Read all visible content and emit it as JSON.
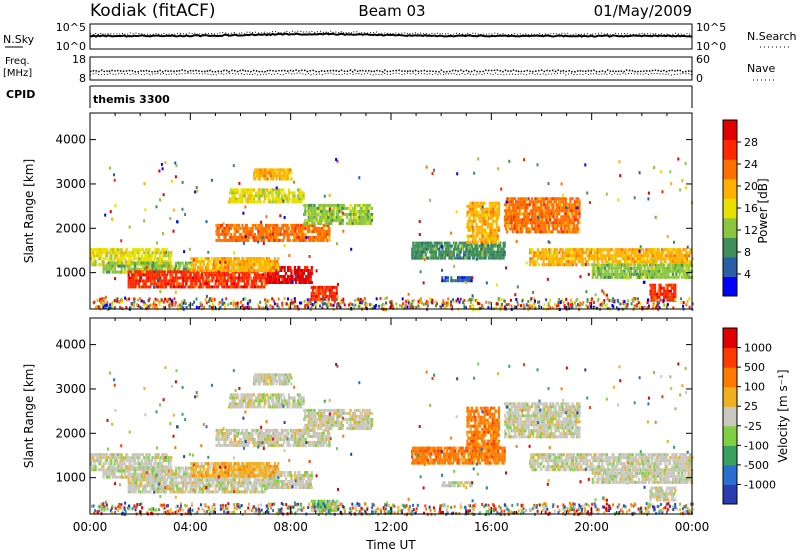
{
  "header": {
    "station": "Kodiak (fitACF)",
    "beam": "Beam 03",
    "date": "01/May/2009"
  },
  "noise_panel": {
    "left_label": "N.Sky",
    "left_ticks": [
      "10^5",
      "10^0"
    ],
    "right_ticks": [
      "10^5",
      "10^0"
    ],
    "right_label": "N.Search"
  },
  "freq_panel": {
    "left_label_1": "Freq.",
    "left_label_2": "[MHz]",
    "left_ticks": [
      "18",
      "8"
    ],
    "right_ticks": [
      "60",
      "0"
    ],
    "right_label": "Nave"
  },
  "cpid": {
    "label": "CPID",
    "value": "themis 3300"
  },
  "colors": {
    "power": [
      "#0000ff",
      "#2a5fa8",
      "#3f8f5a",
      "#8cc63f",
      "#e8e000",
      "#ffb000",
      "#ff7000",
      "#ff2800",
      "#e00000"
    ],
    "velocity": [
      "#2a3db0",
      "#2a6fd0",
      "#3aa060",
      "#7fd040",
      "#c8c8c0",
      "#f0b020",
      "#ff7a00",
      "#ff3a00",
      "#e00000"
    ],
    "ground_scatter": "#c8c8c0"
  },
  "chart_data": [
    {
      "type": "heatmap",
      "title": "",
      "xlabel": "",
      "ylabel": "Slant Range [km]",
      "colorbar_label": "Power [dB]",
      "colorbar_ticks": [
        "28",
        "24",
        "20",
        "16",
        "12",
        "8",
        "4"
      ],
      "xlim": [
        0,
        24
      ],
      "ylim": [
        180,
        4600
      ],
      "yticks": [
        "1000",
        "2000",
        "3000",
        "4000"
      ],
      "x_tick_labels": [
        "00:00",
        "04:00",
        "08:00",
        "12:00",
        "16:00",
        "20:00",
        "00:00"
      ],
      "bands": [
        {
          "t": [
            0.0,
            3.2
          ],
          "r0": 1200,
          "r1": 1550,
          "level": 4
        },
        {
          "t": [
            0.5,
            4.0
          ],
          "r0": 1000,
          "r1": 1250,
          "level": 3
        },
        {
          "t": [
            1.5,
            7.0
          ],
          "r0": 700,
          "r1": 1050,
          "level": 7
        },
        {
          "t": [
            7.0,
            8.8
          ],
          "r0": 800,
          "r1": 1150,
          "level": 8
        },
        {
          "t": [
            4.0,
            7.5
          ],
          "r0": 1050,
          "r1": 1350,
          "level": 5
        },
        {
          "t": [
            5.0,
            9.5
          ],
          "r0": 1750,
          "r1": 2100,
          "level": 6
        },
        {
          "t": [
            8.5,
            11.2
          ],
          "r0": 2100,
          "r1": 2550,
          "level": 3
        },
        {
          "t": [
            5.5,
            8.5
          ],
          "r0": 2600,
          "r1": 2900,
          "level": 4
        },
        {
          "t": [
            6.5,
            8.0
          ],
          "r0": 3100,
          "r1": 3350,
          "level": 5
        },
        {
          "t": [
            8.8,
            9.8
          ],
          "r0": 400,
          "r1": 700,
          "level": 7
        },
        {
          "t": [
            12.8,
            16.5
          ],
          "r0": 1350,
          "r1": 1700,
          "level": 2
        },
        {
          "t": [
            14.0,
            15.2
          ],
          "r0": 820,
          "r1": 920,
          "level": 1
        },
        {
          "t": [
            15.0,
            16.3
          ],
          "r0": 1700,
          "r1": 2600,
          "level": 5
        },
        {
          "t": [
            16.5,
            19.5
          ],
          "r0": 1900,
          "r1": 2700,
          "level": 6
        },
        {
          "t": [
            17.5,
            24.0
          ],
          "r0": 1200,
          "r1": 1550,
          "level": 5
        },
        {
          "t": [
            20.0,
            24.0
          ],
          "r0": 900,
          "r1": 1200,
          "level": 3
        },
        {
          "t": [
            22.3,
            23.3
          ],
          "r0": 400,
          "r1": 750,
          "level": 7
        }
      ]
    },
    {
      "type": "heatmap",
      "title": "",
      "xlabel": "Time UT",
      "ylabel": "Slant Range [km]",
      "colorbar_label": "Velocity [m s⁻¹]",
      "colorbar_ticks": [
        "1000",
        "500",
        "100",
        "25",
        "-25",
        "-100",
        "-500",
        "-1000"
      ],
      "xlim": [
        0,
        24
      ],
      "ylim": [
        180,
        4600
      ],
      "yticks": [
        "1000",
        "2000",
        "3000",
        "4000"
      ],
      "x_tick_labels": [
        "00:00",
        "04:00",
        "08:00",
        "12:00",
        "16:00",
        "20:00",
        "00:00"
      ],
      "bands": [
        {
          "t": [
            0.0,
            3.2
          ],
          "r0": 1200,
          "r1": 1550,
          "level": 4
        },
        {
          "t": [
            0.5,
            4.0
          ],
          "r0": 1000,
          "r1": 1250,
          "level": 4
        },
        {
          "t": [
            1.5,
            7.0
          ],
          "r0": 700,
          "r1": 1050,
          "level": 4
        },
        {
          "t": [
            7.0,
            8.8
          ],
          "r0": 800,
          "r1": 1150,
          "level": 4
        },
        {
          "t": [
            4.0,
            7.5
          ],
          "r0": 1050,
          "r1": 1350,
          "level": 5
        },
        {
          "t": [
            5.0,
            9.5
          ],
          "r0": 1750,
          "r1": 2100,
          "level": 4
        },
        {
          "t": [
            8.5,
            11.2
          ],
          "r0": 2100,
          "r1": 2550,
          "level": 4
        },
        {
          "t": [
            5.5,
            8.5
          ],
          "r0": 2600,
          "r1": 2900,
          "level": 4
        },
        {
          "t": [
            6.5,
            8.0
          ],
          "r0": 3100,
          "r1": 3350,
          "level": 4
        },
        {
          "t": [
            8.8,
            9.8
          ],
          "r0": 250,
          "r1": 500,
          "level": 3
        },
        {
          "t": [
            12.8,
            16.5
          ],
          "r0": 1350,
          "r1": 1700,
          "level": 6
        },
        {
          "t": [
            14.0,
            15.2
          ],
          "r0": 820,
          "r1": 920,
          "level": 4
        },
        {
          "t": [
            15.0,
            16.3
          ],
          "r0": 1700,
          "r1": 2600,
          "level": 6
        },
        {
          "t": [
            16.5,
            19.5
          ],
          "r0": 1900,
          "r1": 2700,
          "level": 4
        },
        {
          "t": [
            17.5,
            24.0
          ],
          "r0": 1200,
          "r1": 1550,
          "level": 4
        },
        {
          "t": [
            20.0,
            24.0
          ],
          "r0": 900,
          "r1": 1200,
          "level": 4
        },
        {
          "t": [
            22.3,
            23.3
          ],
          "r0": 500,
          "r1": 800,
          "level": 4
        }
      ]
    }
  ]
}
